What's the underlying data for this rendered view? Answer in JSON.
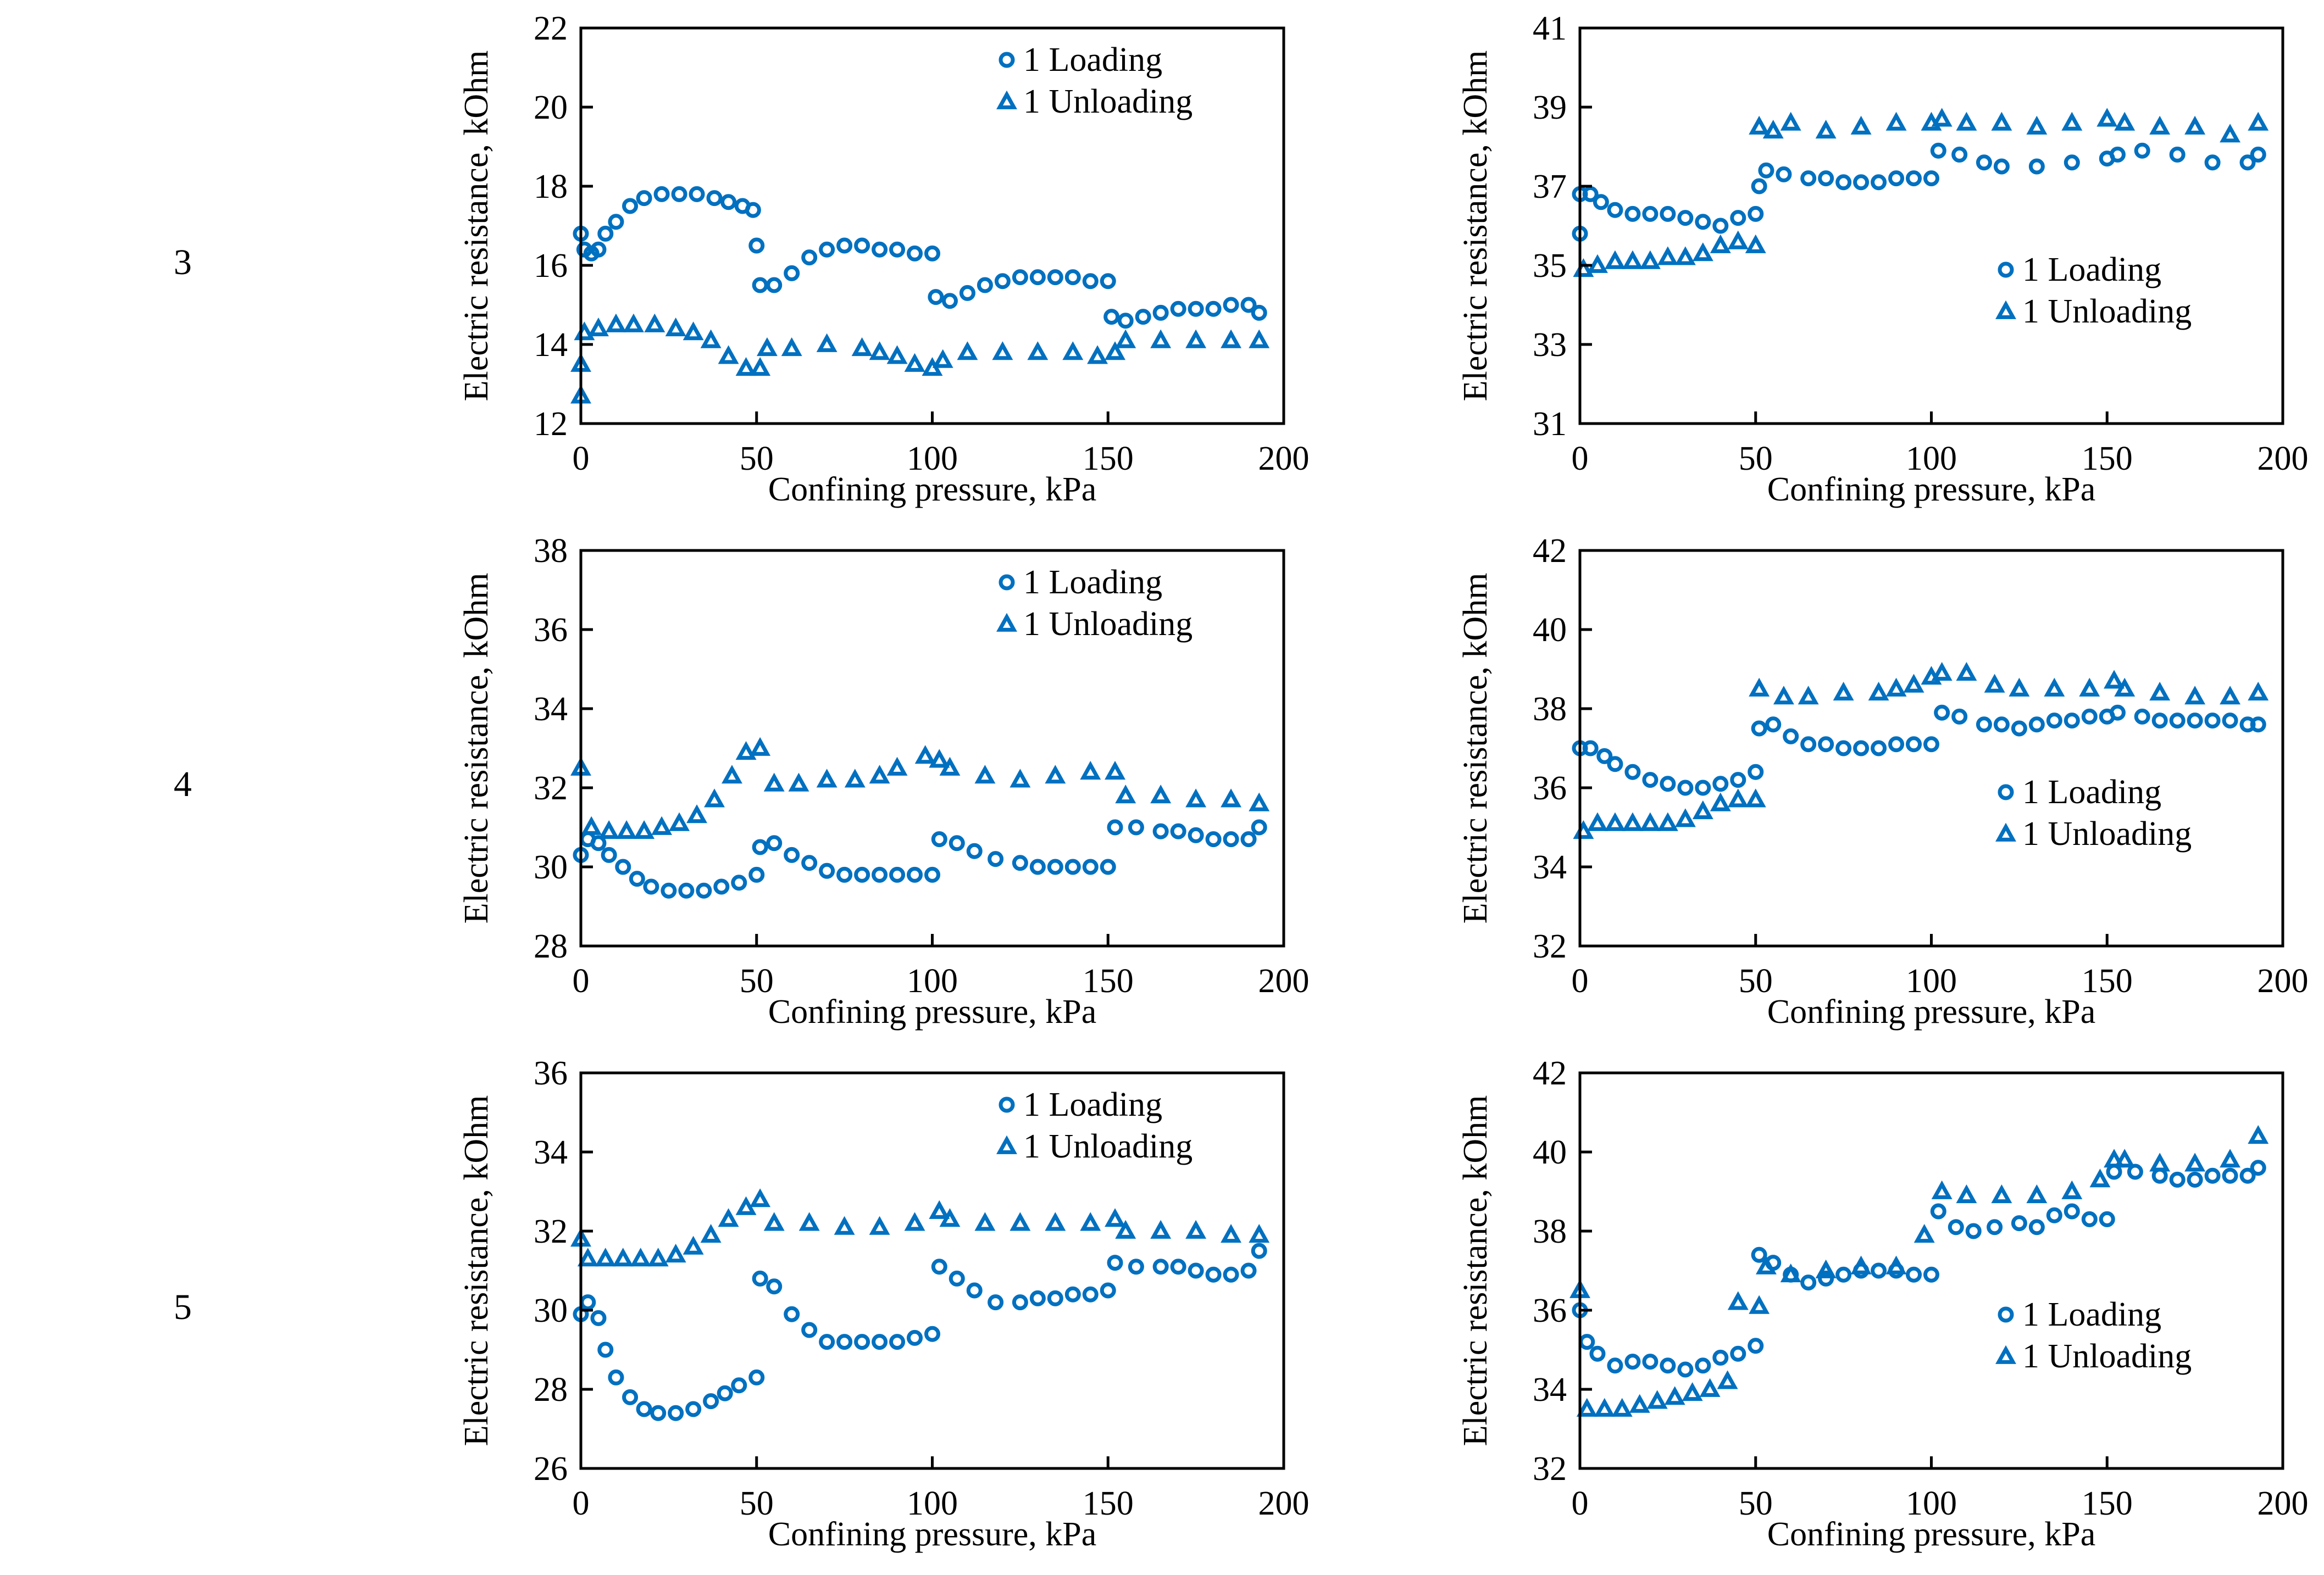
{
  "colors": {
    "series": "#0070C0",
    "axis": "#000000"
  },
  "row_labels": [
    "3",
    "4",
    "5"
  ],
  "chart_data": [
    {
      "type": "scatter",
      "row": "3",
      "xlabel": "Confining pressure, kPa",
      "ylabel": "Electric resistance, kOhm",
      "xlim": [
        0,
        200
      ],
      "ylim": [
        12,
        22
      ],
      "xticks": [
        0,
        50,
        100,
        150,
        200
      ],
      "yticks": [
        12,
        14,
        16,
        18,
        20,
        22
      ],
      "legend": "top-right",
      "series": [
        {
          "name": "1 Loading",
          "marker": "circle",
          "x": [
            0,
            1,
            3,
            5,
            7,
            10,
            14,
            18,
            23,
            28,
            33,
            38,
            42,
            46,
            49,
            50,
            51,
            55,
            60,
            65,
            70,
            75,
            80,
            85,
            90,
            95,
            100,
            101,
            105,
            110,
            115,
            120,
            125,
            130,
            135,
            140,
            145,
            150,
            151,
            155,
            160,
            165,
            170,
            175,
            180,
            185,
            190,
            193
          ],
          "y": [
            16.8,
            16.4,
            16.3,
            16.4,
            16.8,
            17.1,
            17.5,
            17.7,
            17.8,
            17.8,
            17.8,
            17.7,
            17.6,
            17.5,
            17.4,
            16.5,
            15.5,
            15.5,
            15.8,
            16.2,
            16.4,
            16.5,
            16.5,
            16.4,
            16.4,
            16.3,
            16.3,
            15.2,
            15.1,
            15.3,
            15.5,
            15.6,
            15.7,
            15.7,
            15.7,
            15.7,
            15.6,
            15.6,
            14.7,
            14.6,
            14.7,
            14.8,
            14.9,
            14.9,
            14.9,
            15,
            15,
            14.8
          ]
        },
        {
          "name": "1 Unloading",
          "marker": "triangle",
          "x": [
            193,
            185,
            175,
            165,
            155,
            152,
            147,
            140,
            130,
            120,
            110,
            103,
            100,
            95,
            90,
            85,
            80,
            70,
            60,
            53,
            51,
            47,
            42,
            37,
            32,
            27,
            21,
            15,
            10,
            5,
            1,
            0,
            0
          ],
          "y": [
            14.1,
            14.1,
            14.1,
            14.1,
            14.1,
            13.8,
            13.7,
            13.8,
            13.8,
            13.8,
            13.8,
            13.6,
            13.4,
            13.5,
            13.7,
            13.8,
            13.9,
            14,
            13.9,
            13.9,
            13.4,
            13.4,
            13.7,
            14.1,
            14.3,
            14.4,
            14.5,
            14.5,
            14.5,
            14.4,
            14.3,
            13.5,
            12.7
          ]
        }
      ]
    },
    {
      "type": "scatter",
      "row": "3",
      "xlabel": "Confining pressure, kPa",
      "ylabel": "Electric resistance, kOhm",
      "xlim": [
        0,
        200
      ],
      "ylim": [
        31,
        41
      ],
      "xticks": [
        0,
        50,
        100,
        150,
        200
      ],
      "yticks": [
        31,
        33,
        35,
        37,
        39,
        41
      ],
      "legend": "center-right",
      "series": [
        {
          "name": "1 Loading",
          "marker": "circle",
          "x": [
            0,
            0,
            3,
            6,
            10,
            15,
            20,
            25,
            30,
            35,
            40,
            45,
            50,
            51,
            53,
            58,
            65,
            70,
            75,
            80,
            85,
            90,
            95,
            100,
            102,
            108,
            115,
            120,
            130,
            140,
            150,
            153,
            160,
            170,
            180,
            190,
            193
          ],
          "y": [
            36.8,
            35.8,
            36.8,
            36.6,
            36.4,
            36.3,
            36.3,
            36.3,
            36.2,
            36.1,
            36,
            36.2,
            36.3,
            37,
            37.4,
            37.3,
            37.2,
            37.2,
            37.1,
            37.1,
            37.1,
            37.2,
            37.2,
            37.2,
            37.9,
            37.8,
            37.6,
            37.5,
            37.5,
            37.6,
            37.7,
            37.8,
            37.9,
            37.8,
            37.6,
            37.6,
            37.8
          ]
        },
        {
          "name": "1 Unloading",
          "marker": "triangle",
          "x": [
            193,
            185,
            175,
            165,
            155,
            150,
            140,
            130,
            120,
            110,
            103,
            100,
            90,
            80,
            70,
            60,
            55,
            51,
            50,
            45,
            40,
            35,
            30,
            25,
            20,
            15,
            10,
            5,
            1
          ],
          "y": [
            38.6,
            38.3,
            38.5,
            38.5,
            38.6,
            38.7,
            38.6,
            38.5,
            38.6,
            38.6,
            38.7,
            38.6,
            38.6,
            38.5,
            38.4,
            38.6,
            38.4,
            38.5,
            35.5,
            35.6,
            35.5,
            35.3,
            35.2,
            35.2,
            35.1,
            35.1,
            35.1,
            35,
            34.9
          ]
        }
      ]
    },
    {
      "type": "scatter",
      "row": "4",
      "xlabel": "Confining pressure, kPa",
      "ylabel": "Electric resistance, kOhm",
      "xlim": [
        0,
        200
      ],
      "ylim": [
        28,
        38
      ],
      "xticks": [
        0,
        50,
        100,
        150,
        200
      ],
      "yticks": [
        28,
        30,
        32,
        34,
        36,
        38
      ],
      "legend": "top-right",
      "series": [
        {
          "name": "1 Loading",
          "marker": "circle",
          "x": [
            0,
            2,
            5,
            8,
            12,
            16,
            20,
            25,
            30,
            35,
            40,
            45,
            50,
            51,
            55,
            60,
            65,
            70,
            75,
            80,
            85,
            90,
            95,
            100,
            102,
            107,
            112,
            118,
            125,
            130,
            135,
            140,
            145,
            150,
            152,
            158,
            165,
            170,
            175,
            180,
            185,
            190,
            193
          ],
          "y": [
            30.3,
            30.7,
            30.6,
            30.3,
            30,
            29.7,
            29.5,
            29.4,
            29.4,
            29.4,
            29.5,
            29.6,
            29.8,
            30.5,
            30.6,
            30.3,
            30.1,
            29.9,
            29.8,
            29.8,
            29.8,
            29.8,
            29.8,
            29.8,
            30.7,
            30.6,
            30.4,
            30.2,
            30.1,
            30,
            30,
            30,
            30,
            30,
            31,
            31,
            30.9,
            30.9,
            30.8,
            30.7,
            30.7,
            30.7,
            31
          ]
        },
        {
          "name": "1 Unloading",
          "marker": "triangle",
          "x": [
            193,
            185,
            175,
            165,
            155,
            152,
            145,
            135,
            125,
            115,
            105,
            102,
            98,
            90,
            85,
            78,
            70,
            62,
            55,
            51,
            47,
            43,
            38,
            33,
            28,
            23,
            18,
            13,
            8,
            3,
            0
          ],
          "y": [
            31.6,
            31.7,
            31.7,
            31.8,
            31.8,
            32.4,
            32.4,
            32.3,
            32.2,
            32.3,
            32.5,
            32.7,
            32.8,
            32.5,
            32.3,
            32.2,
            32.2,
            32.1,
            32.1,
            33,
            32.9,
            32.3,
            31.7,
            31.3,
            31.1,
            31,
            30.9,
            30.9,
            30.9,
            31,
            32.5
          ]
        }
      ]
    },
    {
      "type": "scatter",
      "row": "4",
      "xlabel": "Confining pressure, kPa",
      "ylabel": "Electric resistance, kOhm",
      "xlim": [
        0,
        200
      ],
      "ylim": [
        32,
        42
      ],
      "xticks": [
        0,
        50,
        100,
        150,
        200
      ],
      "yticks": [
        32,
        34,
        36,
        38,
        40,
        42
      ],
      "legend": "center-right",
      "series": [
        {
          "name": "1 Loading",
          "marker": "circle",
          "x": [
            0,
            3,
            7,
            10,
            15,
            20,
            25,
            30,
            35,
            40,
            45,
            50,
            51,
            55,
            60,
            65,
            70,
            75,
            80,
            85,
            90,
            95,
            100,
            103,
            108,
            115,
            120,
            125,
            130,
            135,
            140,
            145,
            150,
            153,
            160,
            165,
            170,
            175,
            180,
            185,
            190,
            193
          ],
          "y": [
            37,
            37,
            36.8,
            36.6,
            36.4,
            36.2,
            36.1,
            36,
            36,
            36.1,
            36.2,
            36.4,
            37.5,
            37.6,
            37.3,
            37.1,
            37.1,
            37,
            37,
            37,
            37.1,
            37.1,
            37.1,
            37.9,
            37.8,
            37.6,
            37.6,
            37.5,
            37.6,
            37.7,
            37.7,
            37.8,
            37.8,
            37.9,
            37.8,
            37.7,
            37.7,
            37.7,
            37.7,
            37.7,
            37.6,
            37.6
          ]
        },
        {
          "name": "1 Unloading",
          "marker": "triangle",
          "x": [
            193,
            185,
            175,
            165,
            155,
            152,
            145,
            135,
            125,
            118,
            110,
            103,
            100,
            95,
            90,
            85,
            75,
            65,
            58,
            51,
            50,
            45,
            40,
            35,
            30,
            25,
            20,
            15,
            10,
            5,
            1
          ],
          "y": [
            38.4,
            38.3,
            38.3,
            38.4,
            38.5,
            38.7,
            38.5,
            38.5,
            38.5,
            38.6,
            38.9,
            38.9,
            38.8,
            38.6,
            38.5,
            38.4,
            38.4,
            38.3,
            38.3,
            38.5,
            35.7,
            35.7,
            35.6,
            35.4,
            35.2,
            35.1,
            35.1,
            35.1,
            35.1,
            35.1,
            34.9
          ]
        }
      ]
    },
    {
      "type": "scatter",
      "row": "5",
      "xlabel": "Confining pressure, kPa",
      "ylabel": "Electric resistance, kOhm",
      "xlim": [
        0,
        200
      ],
      "ylim": [
        26,
        36
      ],
      "xticks": [
        0,
        50,
        100,
        150,
        200
      ],
      "yticks": [
        26,
        28,
        30,
        32,
        34,
        36
      ],
      "legend": "top-right",
      "series": [
        {
          "name": "1 Loading",
          "marker": "circle",
          "x": [
            0,
            2,
            5,
            7,
            10,
            14,
            18,
            22,
            27,
            32,
            37,
            41,
            45,
            50,
            51,
            55,
            60,
            65,
            70,
            75,
            80,
            85,
            90,
            95,
            100,
            102,
            107,
            112,
            118,
            125,
            130,
            135,
            140,
            145,
            150,
            152,
            158,
            165,
            170,
            175,
            180,
            185,
            190,
            193
          ],
          "y": [
            29.9,
            30.2,
            29.8,
            29,
            28.3,
            27.8,
            27.5,
            27.4,
            27.4,
            27.5,
            27.7,
            27.9,
            28.1,
            28.3,
            30.8,
            30.6,
            29.9,
            29.5,
            29.2,
            29.2,
            29.2,
            29.2,
            29.2,
            29.3,
            29.4,
            31.1,
            30.8,
            30.5,
            30.2,
            30.2,
            30.3,
            30.3,
            30.4,
            30.4,
            30.5,
            31.2,
            31.1,
            31.1,
            31.1,
            31,
            30.9,
            30.9,
            31,
            31.5
          ]
        },
        {
          "name": "1 Unloading",
          "marker": "triangle",
          "x": [
            193,
            185,
            175,
            165,
            155,
            152,
            145,
            135,
            125,
            115,
            105,
            102,
            95,
            85,
            75,
            65,
            55,
            51,
            47,
            42,
            37,
            32,
            27,
            22,
            17,
            12,
            7,
            2,
            0
          ],
          "y": [
            31.9,
            31.9,
            32,
            32,
            32,
            32.3,
            32.2,
            32.2,
            32.2,
            32.2,
            32.3,
            32.5,
            32.2,
            32.1,
            32.1,
            32.2,
            32.2,
            32.8,
            32.6,
            32.3,
            31.9,
            31.6,
            31.4,
            31.3,
            31.3,
            31.3,
            31.3,
            31.3,
            31.8
          ]
        }
      ]
    },
    {
      "type": "scatter",
      "row": "5",
      "xlabel": "Confining pressure, kPa",
      "ylabel": "Electric resistance, kOhm",
      "xlim": [
        0,
        200
      ],
      "ylim": [
        32,
        42
      ],
      "xticks": [
        0,
        50,
        100,
        150,
        200
      ],
      "yticks": [
        32,
        34,
        36,
        38,
        40,
        42
      ],
      "legend": "center-right",
      "series": [
        {
          "name": "1 Loading",
          "marker": "circle",
          "x": [
            0,
            2,
            5,
            10,
            15,
            20,
            25,
            30,
            35,
            40,
            45,
            50,
            51,
            55,
            60,
            65,
            70,
            75,
            80,
            85,
            90,
            95,
            100,
            102,
            107,
            112,
            118,
            125,
            130,
            135,
            140,
            145,
            150,
            152,
            158,
            165,
            170,
            175,
            180,
            185,
            190,
            193
          ],
          "y": [
            36,
            35.2,
            34.9,
            34.6,
            34.7,
            34.7,
            34.6,
            34.5,
            34.6,
            34.8,
            34.9,
            35.1,
            37.4,
            37.2,
            36.9,
            36.7,
            36.8,
            36.9,
            37,
            37,
            37,
            36.9,
            36.9,
            38.5,
            38.1,
            38,
            38.1,
            38.2,
            38.1,
            38.4,
            38.5,
            38.3,
            38.3,
            39.5,
            39.5,
            39.4,
            39.3,
            39.3,
            39.4,
            39.4,
            39.4,
            39.6
          ]
        },
        {
          "name": "1 Unloading",
          "marker": "triangle",
          "x": [
            193,
            185,
            175,
            165,
            155,
            152,
            148,
            140,
            130,
            120,
            110,
            103,
            98,
            90,
            80,
            70,
            60,
            53,
            51,
            45,
            42,
            37,
            32,
            27,
            22,
            17,
            12,
            7,
            2,
            0
          ],
          "y": [
            40.4,
            39.8,
            39.7,
            39.7,
            39.8,
            39.8,
            39.3,
            39,
            38.9,
            38.9,
            38.9,
            39,
            37.9,
            37.1,
            37.1,
            37,
            36.9,
            37.1,
            36.1,
            36.2,
            34.2,
            34,
            33.9,
            33.8,
            33.7,
            33.6,
            33.5,
            33.5,
            33.5,
            36.5
          ]
        }
      ]
    }
  ]
}
